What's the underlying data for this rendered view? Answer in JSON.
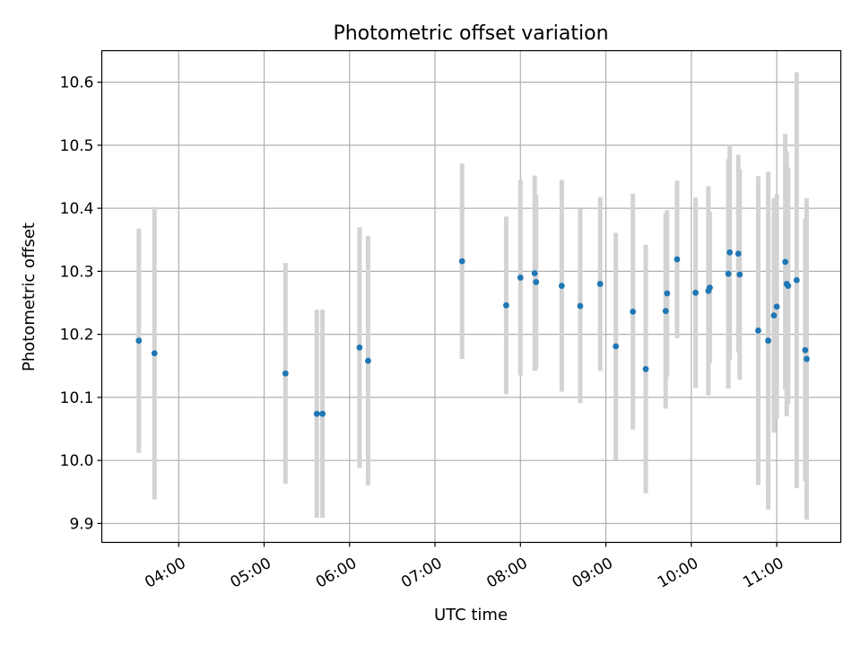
{
  "chart_data": {
    "type": "scatter",
    "title": "Photometric offset variation",
    "xlabel": "UTC time",
    "ylabel": "Photometric offset",
    "xlim": [
      "03:06",
      "11:45"
    ],
    "ylim": [
      9.87,
      10.65
    ],
    "x_ticks": [
      "04:00",
      "05:00",
      "06:00",
      "07:00",
      "08:00",
      "09:00",
      "10:00",
      "11:00"
    ],
    "y_ticks": [
      9.9,
      10.0,
      10.1,
      10.2,
      10.3,
      10.4,
      10.5,
      10.6
    ],
    "y_tick_labels": [
      "9.9",
      "10.0",
      "10.1",
      "10.2",
      "10.3",
      "10.4",
      "10.5",
      "10.6"
    ],
    "grid": true,
    "colors": {
      "point": "#1f77b4",
      "errorbar": "#d3d3d3",
      "grid": "#b0b0b0"
    },
    "series": [
      {
        "x": [
          "03:32",
          "03:43",
          "05:15",
          "05:37",
          "05:41",
          "06:07",
          "06:13",
          "07:19",
          "07:50",
          "08:00",
          "08:10",
          "08:11",
          "08:29",
          "08:42",
          "08:56",
          "09:07",
          "09:19",
          "09:28",
          "09:42",
          "09:43",
          "09:50",
          "10:03",
          "10:12",
          "10:13",
          "10:26",
          "10:27",
          "10:33",
          "10:34",
          "10:47",
          "10:54",
          "10:58",
          "11:00",
          "11:06",
          "11:07",
          "11:08",
          "11:14",
          "11:20",
          "11:21"
        ],
        "y": [
          10.19,
          10.17,
          10.138,
          10.074,
          10.074,
          10.179,
          10.158,
          10.316,
          10.246,
          10.29,
          10.297,
          10.283,
          10.277,
          10.245,
          10.28,
          10.181,
          10.236,
          10.145,
          10.237,
          10.265,
          10.319,
          10.266,
          10.269,
          10.274,
          10.296,
          10.33,
          10.328,
          10.295,
          10.206,
          10.19,
          10.23,
          10.244,
          10.315,
          10.28,
          10.277,
          10.286,
          10.175,
          10.161
        ],
        "yerr": [
          0.178,
          0.232,
          0.175,
          0.165,
          0.165,
          0.191,
          0.198,
          0.155,
          0.141,
          0.155,
          0.155,
          0.138,
          0.168,
          0.154,
          0.138,
          0.18,
          0.187,
          0.197,
          0.155,
          0.132,
          0.125,
          0.151,
          0.166,
          0.12,
          0.182,
          0.17,
          0.157,
          0.167,
          0.245,
          0.268,
          0.186,
          0.178,
          0.203,
          0.21,
          0.188,
          0.33,
          0.208,
          0.255
        ]
      }
    ]
  }
}
